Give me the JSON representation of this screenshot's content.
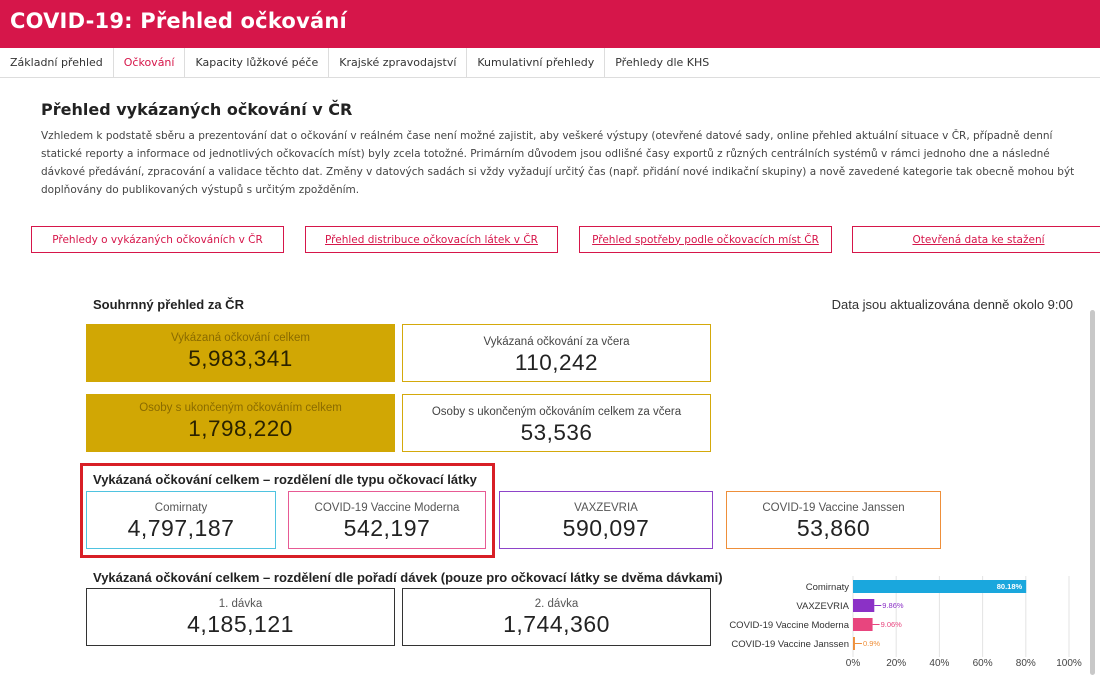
{
  "app": {
    "title": "COVID-19: Přehled očkování"
  },
  "nav": {
    "tabs": [
      {
        "label": "Základní přehled"
      },
      {
        "label": "Očkování"
      },
      {
        "label": "Kapacity lůžkové péče"
      },
      {
        "label": "Krajské zpravodajství"
      },
      {
        "label": "Kumulativní přehledy"
      },
      {
        "label": "Přehledy dle KHS"
      }
    ],
    "active": "Očkování"
  },
  "page": {
    "title": "Přehled vykázaných očkování v ČR",
    "intro": "Vzhledem k podstatě sběru a prezentování dat o očkování v reálném čase není možné zajistit, aby veškeré výstupy (otevřené datové sady, online přehled aktuální situace v ČR, případně denní statické reporty a informace od jednotlivých očkovacích míst) byly zcela totožné. Primárním důvodem jsou odlišné časy exportů z různých centrálních systémů v rámci jednoho dne a následné dávkové předávání, zpracování a validace těchto dat. Změny v datových sadách si vždy vyžadují určitý čas (např. přidání nové indikační skupiny) a nově zavedené kategorie tak obecně mohou být doplňovány do publikovaných výstupů s určitým zpožděním."
  },
  "links": [
    {
      "label": "Přehledy o vykázaných očkováních v ČR"
    },
    {
      "label": "Přehled distribuce očkovacích látek v ČR"
    },
    {
      "label": "Přehled spotřeby podle očkovacích míst ČR"
    },
    {
      "label": "Otevřená data ke stažení"
    }
  ],
  "summary": {
    "title": "Souhrnný přehled za ČR",
    "updated": "Data jsou aktualizována denně okolo 9:00",
    "cards": [
      {
        "label": "Vykázaná očkování celkem",
        "value": "5,983,341"
      },
      {
        "label": "Vykázaná očkování za včera",
        "value": "110,242"
      },
      {
        "label": "Osoby s ukončeným očkováním celkem",
        "value": "1,798,220"
      },
      {
        "label": "Osoby s ukončeným očkováním celkem za včera",
        "value": "53,536"
      }
    ]
  },
  "by_vaccine": {
    "title": "Vykázaná očkování celkem – rozdělení dle typu očkovací látky",
    "cards": [
      {
        "label": "Comirnaty",
        "value": "4,797,187",
        "color": "#4fc3e0"
      },
      {
        "label": "COVID-19 Vaccine Moderna",
        "value": "542,197",
        "color": "#e75a94"
      },
      {
        "label": "VAXZEVRIA",
        "value": "590,097",
        "color": "#8e44c9"
      },
      {
        "label": "COVID-19 Vaccine Janssen",
        "value": "53,860",
        "color": "#ee8f3a"
      }
    ]
  },
  "by_dose": {
    "title": "Vykázaná očkování celkem – rozdělení dle pořadí dávek (pouze pro očkovací látky se dvěma dávkami)",
    "cards": [
      {
        "label": "1. dávka",
        "value": "4,185,121"
      },
      {
        "label": "2. dávka",
        "value": "1,744,360"
      }
    ]
  },
  "chart_data": {
    "type": "bar",
    "orientation": "horizontal",
    "categories": [
      "Comirnaty",
      "VAXZEVRIA",
      "COVID-19 Vaccine Moderna",
      "COVID-19 Vaccine Janssen"
    ],
    "values": [
      80.18,
      9.86,
      9.06,
      0.9
    ],
    "data_labels": [
      "80.18%",
      "9.86%",
      "9.06%",
      "0.9%"
    ],
    "colors": [
      "#1aa7dd",
      "#8b31c6",
      "#e8457e",
      "#ee8f3a"
    ],
    "label_colors": [
      "#ffffff",
      "#8b31c6",
      "#e8457e",
      "#ee8f3a"
    ],
    "xlim": [
      0,
      100
    ],
    "xticks": [
      "0%",
      "20%",
      "40%",
      "60%",
      "80%",
      "100%"
    ],
    "grid": true
  }
}
